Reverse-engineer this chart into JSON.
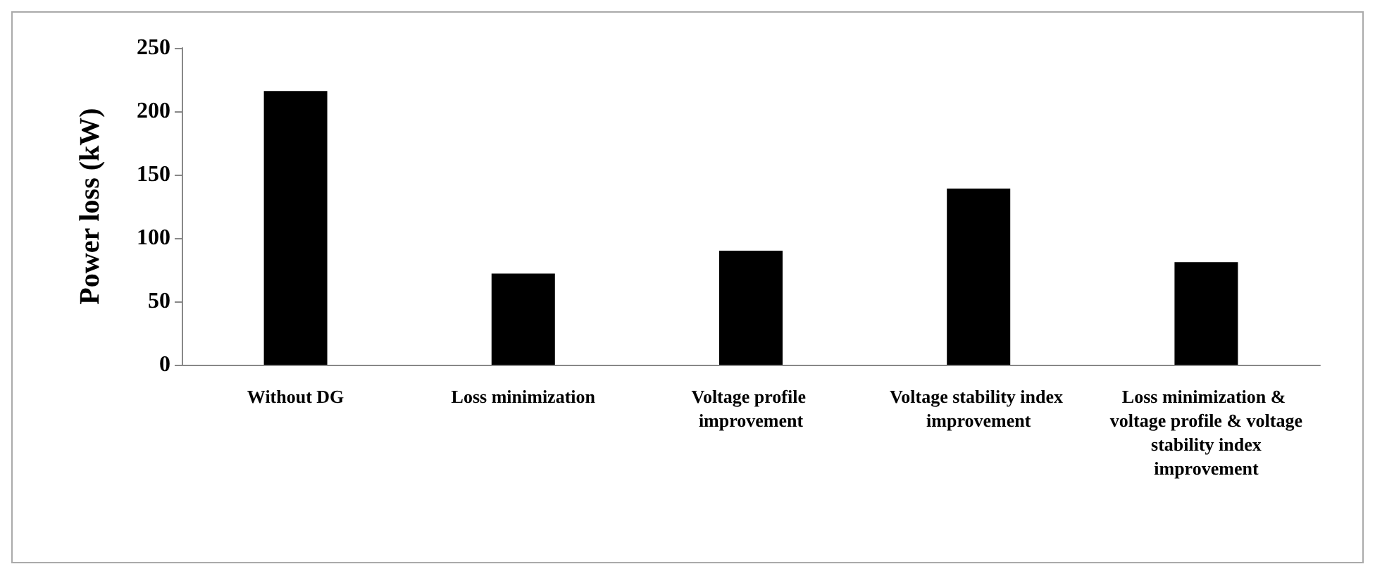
{
  "chart_data": {
    "type": "bar",
    "ylabel": "Power loss (kW)",
    "categories": [
      "Without DG",
      "Loss minimization",
      "Voltage profile improvement",
      "Voltage stability index improvement",
      "Loss minimization & voltage profile & voltage stability index improvement"
    ],
    "values": [
      216,
      72,
      90,
      139,
      81
    ],
    "color": "#000000",
    "ylim": [
      0,
      250
    ],
    "yticks": [
      0,
      50,
      100,
      150,
      200,
      250
    ],
    "grid": false
  }
}
